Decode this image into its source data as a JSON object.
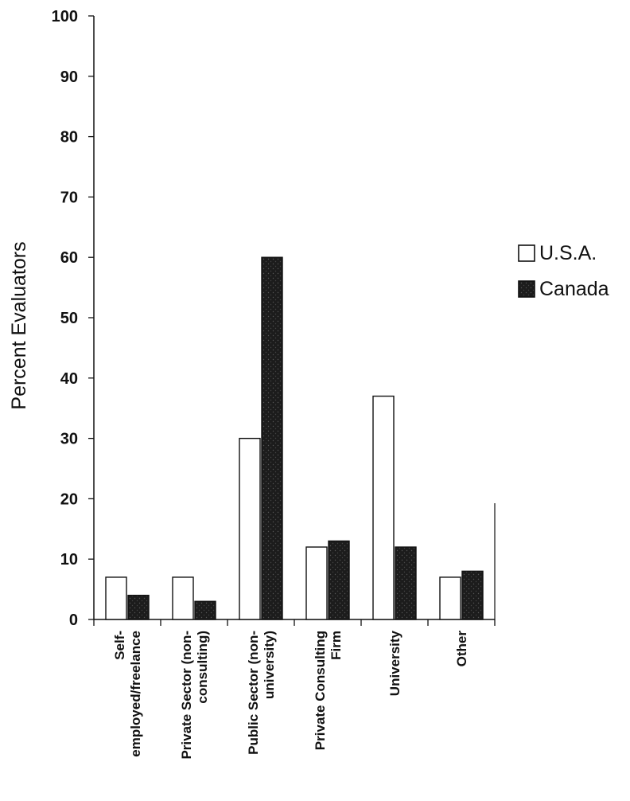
{
  "chart_data": {
    "type": "bar",
    "ylabel": "Percent Evaluators",
    "xlabel": "",
    "ylim": [
      0,
      100
    ],
    "yticks": [
      0,
      10,
      20,
      30,
      40,
      50,
      60,
      70,
      80,
      90,
      100
    ],
    "categories": [
      [
        "Self-",
        "employed/freelance"
      ],
      [
        "Private Sector (non-",
        "consulting)"
      ],
      [
        "Public Sector (non-",
        "university)"
      ],
      [
        "Private Consulting",
        "Firm"
      ],
      [
        "University"
      ],
      [
        "Other"
      ]
    ],
    "series": [
      {
        "name": "U.S.A.",
        "values": [
          7,
          7,
          30,
          12,
          37,
          7
        ],
        "color": "#ffffff"
      },
      {
        "name": "Canada",
        "values": [
          4,
          3,
          60,
          13,
          12,
          8
        ],
        "color": "#1c1c1c"
      }
    ],
    "legend_position": "right",
    "grid": false
  }
}
